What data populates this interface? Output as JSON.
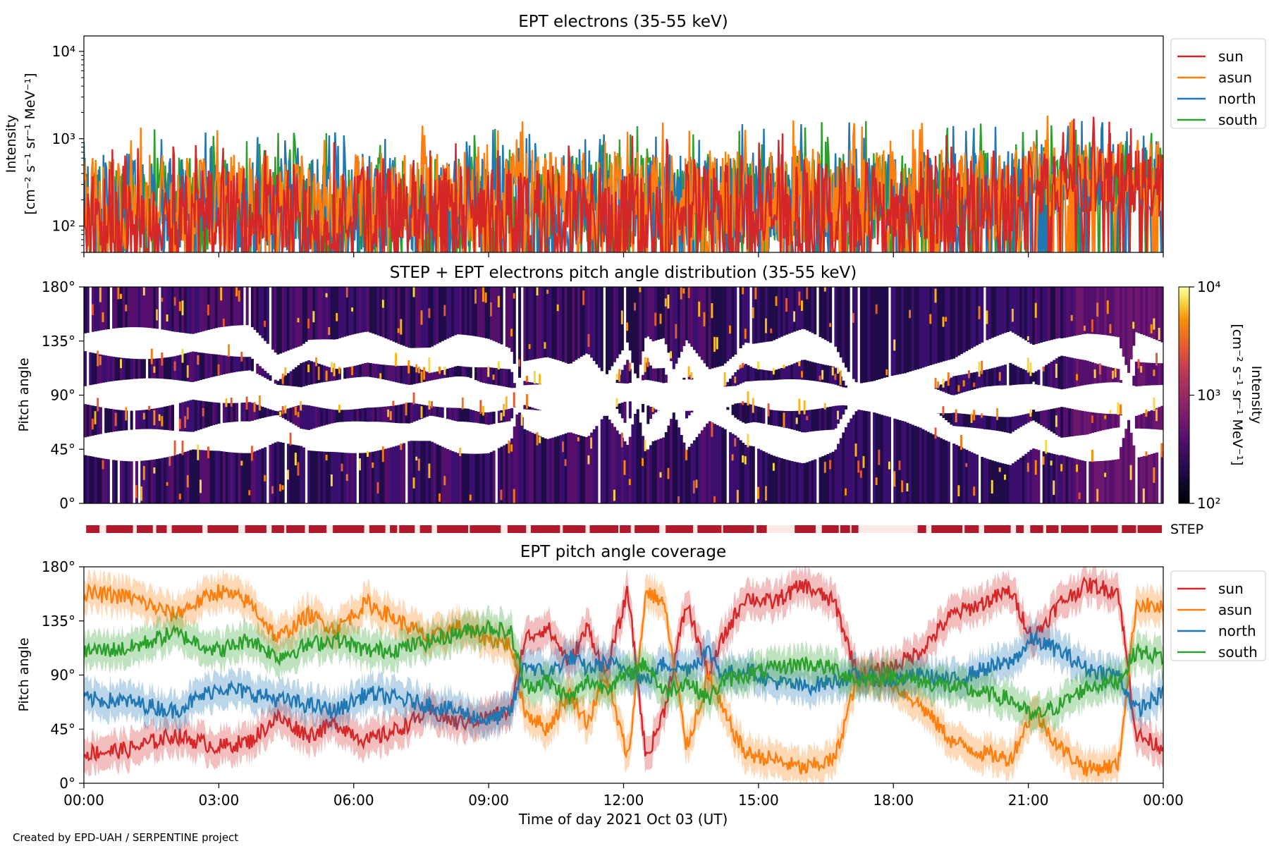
{
  "footer": "Created by EPD-UAH / SERPENTINE project",
  "colors": {
    "sun": "#d62728",
    "asun": "#ff7f0e",
    "north": "#1f77b4",
    "south": "#2ca02c",
    "step": "#b2182b"
  },
  "chart_data": [
    {
      "type": "line",
      "title": "EPT electrons (35-55 keV)",
      "ylabel_line1": "Intensity",
      "ylabel_line2": "[cm⁻² s⁻¹ sr⁻¹ MeV⁻¹]",
      "yscale": "log",
      "ylim": [
        50,
        15000
      ],
      "y_ticks": [
        {
          "value": 100,
          "label": "10²"
        },
        {
          "value": 1000,
          "label": "10³"
        },
        {
          "value": 10000,
          "label": "10⁴"
        }
      ],
      "legend": "top-right-outside",
      "series": [
        {
          "name": "sun",
          "color": "#d62728",
          "base": 130,
          "late_base": 330
        },
        {
          "name": "asun",
          "color": "#ff7f0e",
          "base": 185,
          "late_base": 370
        },
        {
          "name": "north",
          "color": "#1f77b4",
          "base": 170,
          "late_base": 340
        },
        {
          "name": "south",
          "color": "#2ca02c",
          "base": 175,
          "late_base": 350
        }
      ]
    },
    {
      "type": "heatmap",
      "title": "STEP + EPT electrons pitch angle distribution (35-55 keV)",
      "ylabel": "Pitch angle",
      "ylim": [
        0,
        180
      ],
      "y_ticks": [
        "0°",
        "45°",
        "90°",
        "135°",
        "180°"
      ],
      "colorbar": {
        "label_line1": "Intensity",
        "label_line2": "[cm⁻² s⁻¹ sr⁻¹ MeV⁻¹]",
        "scale": "log",
        "range": [
          100,
          10000
        ],
        "ticks": [
          "10²",
          "10³",
          "10⁴"
        ],
        "colormap": "inferno"
      },
      "step_label": "STEP"
    },
    {
      "type": "line",
      "title": "EPT pitch angle coverage",
      "ylabel": "Pitch angle",
      "xlabel": "Time of day 2021 Oct 03 (UT)",
      "ylim": [
        0,
        180
      ],
      "y_ticks": [
        "0°",
        "45°",
        "90°",
        "135°",
        "180°"
      ],
      "x_ticks": [
        "00:00",
        "03:00",
        "06:00",
        "09:00",
        "12:00",
        "15:00",
        "18:00",
        "21:00",
        "00:00"
      ],
      "xlim_hours": [
        0,
        24
      ],
      "legend": "top-right-outside",
      "series": [
        {
          "name": "sun",
          "color": "#d62728",
          "points": [
            [
              0,
              25
            ],
            [
              1,
              28
            ],
            [
              2,
              40
            ],
            [
              3,
              30
            ],
            [
              3.7,
              35
            ],
            [
              4.3,
              55
            ],
            [
              5,
              40
            ],
            [
              5.6,
              50
            ],
            [
              6.3,
              35
            ],
            [
              7,
              45
            ],
            [
              7.7,
              60
            ],
            [
              8.3,
              50
            ],
            [
              9,
              55
            ],
            [
              9.5,
              60
            ],
            [
              9.8,
              120
            ],
            [
              10.3,
              130
            ],
            [
              10.8,
              100
            ],
            [
              11.2,
              130
            ],
            [
              11.6,
              90
            ],
            [
              12.1,
              160
            ],
            [
              12.5,
              20
            ],
            [
              12.9,
              60
            ],
            [
              13.4,
              150
            ],
            [
              13.9,
              90
            ],
            [
              14.2,
              120
            ],
            [
              14.7,
              155
            ],
            [
              15.3,
              150
            ],
            [
              16,
              165
            ],
            [
              16.7,
              150
            ],
            [
              17.2,
              90
            ],
            [
              17.9,
              95
            ],
            [
              18.6,
              110
            ],
            [
              19.3,
              140
            ],
            [
              20,
              150
            ],
            [
              20.6,
              160
            ],
            [
              21.1,
              120
            ],
            [
              21.7,
              150
            ],
            [
              22.3,
              165
            ],
            [
              23,
              160
            ],
            [
              23.4,
              40
            ],
            [
              24,
              30
            ]
          ]
        },
        {
          "name": "asun",
          "color": "#ff7f0e",
          "points": [
            [
              0,
              158
            ],
            [
              1,
              155
            ],
            [
              2,
              140
            ],
            [
              3,
              160
            ],
            [
              3.7,
              150
            ],
            [
              4.3,
              120
            ],
            [
              5,
              140
            ],
            [
              5.6,
              128
            ],
            [
              6.3,
              150
            ],
            [
              7,
              135
            ],
            [
              7.7,
              120
            ],
            [
              8.3,
              130
            ],
            [
              9,
              120
            ],
            [
              9.5,
              115
            ],
            [
              9.8,
              60
            ],
            [
              10.3,
              45
            ],
            [
              10.8,
              75
            ],
            [
              11.2,
              50
            ],
            [
              11.6,
              90
            ],
            [
              12.1,
              20
            ],
            [
              12.5,
              160
            ],
            [
              12.9,
              150
            ],
            [
              13.4,
              30
            ],
            [
              13.9,
              90
            ],
            [
              14.2,
              60
            ],
            [
              14.7,
              25
            ],
            [
              15.3,
              20
            ],
            [
              16,
              12
            ],
            [
              16.7,
              20
            ],
            [
              17.2,
              90
            ],
            [
              17.9,
              85
            ],
            [
              18.6,
              65
            ],
            [
              19.3,
              35
            ],
            [
              20,
              25
            ],
            [
              20.6,
              20
            ],
            [
              21.1,
              60
            ],
            [
              21.7,
              30
            ],
            [
              22.3,
              12
            ],
            [
              23,
              15
            ],
            [
              23.4,
              150
            ],
            [
              24,
              145
            ]
          ]
        },
        {
          "name": "north",
          "color": "#1f77b4",
          "points": [
            [
              0,
              70
            ],
            [
              1,
              68
            ],
            [
              2,
              60
            ],
            [
              3,
              80
            ],
            [
              3.7,
              75
            ],
            [
              4.3,
              70
            ],
            [
              5,
              65
            ],
            [
              5.6,
              60
            ],
            [
              6.3,
              75
            ],
            [
              7,
              70
            ],
            [
              7.7,
              65
            ],
            [
              8.3,
              60
            ],
            [
              9,
              52
            ],
            [
              9.5,
              60
            ],
            [
              9.8,
              100
            ],
            [
              10.3,
              90
            ],
            [
              10.8,
              105
            ],
            [
              11.2,
              95
            ],
            [
              11.6,
              100
            ],
            [
              12.1,
              95
            ],
            [
              12.5,
              85
            ],
            [
              12.9,
              100
            ],
            [
              13.4,
              95
            ],
            [
              13.9,
              110
            ],
            [
              14.2,
              90
            ],
            [
              14.7,
              95
            ],
            [
              15.3,
              85
            ],
            [
              16,
              80
            ],
            [
              16.7,
              85
            ],
            [
              17.2,
              90
            ],
            [
              17.9,
              85
            ],
            [
              18.6,
              90
            ],
            [
              19.3,
              85
            ],
            [
              20,
              95
            ],
            [
              20.6,
              100
            ],
            [
              21.1,
              120
            ],
            [
              21.7,
              110
            ],
            [
              22.3,
              95
            ],
            [
              23,
              90
            ],
            [
              23.4,
              60
            ],
            [
              24,
              75
            ]
          ]
        },
        {
          "name": "south",
          "color": "#2ca02c",
          "points": [
            [
              0,
              110
            ],
            [
              1,
              112
            ],
            [
              2,
              125
            ],
            [
              3,
              110
            ],
            [
              3.7,
              120
            ],
            [
              4.3,
              105
            ],
            [
              5,
              115
            ],
            [
              5.6,
              120
            ],
            [
              6.3,
              110
            ],
            [
              7,
              112
            ],
            [
              7.7,
              118
            ],
            [
              8.3,
              125
            ],
            [
              9,
              130
            ],
            [
              9.5,
              125
            ],
            [
              9.8,
              80
            ],
            [
              10.3,
              85
            ],
            [
              10.8,
              70
            ],
            [
              11.2,
              85
            ],
            [
              11.6,
              80
            ],
            [
              12.1,
              90
            ],
            [
              12.5,
              100
            ],
            [
              12.9,
              75
            ],
            [
              13.4,
              85
            ],
            [
              13.9,
              70
            ],
            [
              14.2,
              85
            ],
            [
              14.7,
              90
            ],
            [
              15.3,
              95
            ],
            [
              16,
              100
            ],
            [
              16.7,
              95
            ],
            [
              17.2,
              85
            ],
            [
              17.9,
              90
            ],
            [
              18.6,
              85
            ],
            [
              19.3,
              80
            ],
            [
              20,
              75
            ],
            [
              20.6,
              70
            ],
            [
              21.1,
              55
            ],
            [
              21.7,
              65
            ],
            [
              22.3,
              80
            ],
            [
              23,
              85
            ],
            [
              23.4,
              110
            ],
            [
              24,
              105
            ]
          ]
        }
      ]
    }
  ]
}
